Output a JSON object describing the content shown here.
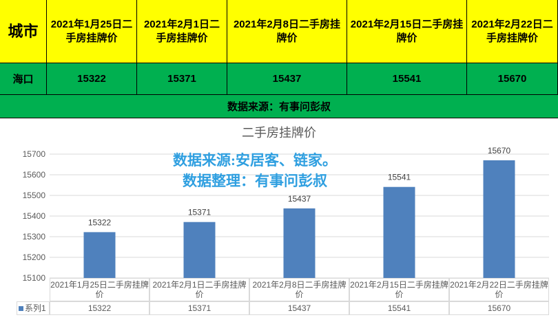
{
  "table": {
    "city_header": "城市",
    "date_headers": [
      "2021年1月25日二手房挂牌价",
      "2021年2月1日二手房挂牌价",
      "2021年2月8日二手房挂牌价",
      "2021年2月15日二手房挂牌价",
      "2021年2月22日二手房挂牌价"
    ],
    "city": "海口",
    "values": [
      "15322",
      "15371",
      "15437",
      "15541",
      "15670"
    ]
  },
  "source_banner": "数据来源：有事问彭叔",
  "overlay": {
    "line1": "数据来源:安居客、链家。",
    "line2": "数据整理：有事问彭叔"
  },
  "colors": {
    "header_bg": "#ffff00",
    "row_bg": "#00b050",
    "bar": "#4f81bd",
    "overlay_text": "#2f9fe0"
  },
  "chart_data": {
    "type": "bar",
    "title": "二手房挂牌价",
    "categories": [
      "2021年1月25日二手房挂牌价",
      "2021年2月1日二手房挂牌价",
      "2021年2月8日二手房挂牌价",
      "2021年2月15日二手房挂牌价",
      "2021年2月22日二手房挂牌价"
    ],
    "series": [
      {
        "name": "系列1",
        "values": [
          15322,
          15371,
          15437,
          15541,
          15670
        ]
      }
    ],
    "ylim": [
      15100,
      15700
    ],
    "yticks": [
      15100,
      15200,
      15300,
      15400,
      15500,
      15600,
      15700
    ],
    "grid": true,
    "data_table": true
  }
}
